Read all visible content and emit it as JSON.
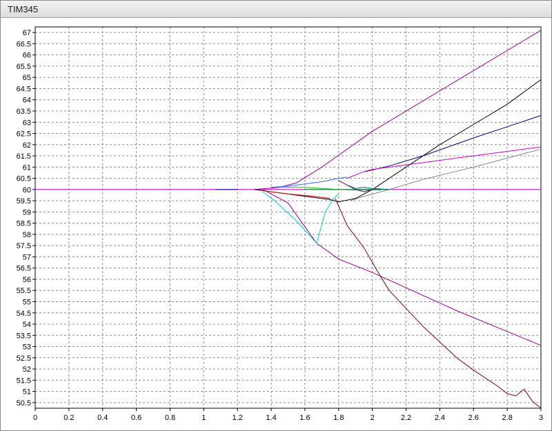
{
  "window": {
    "title": "TIM345"
  },
  "chart_data": {
    "type": "line",
    "title": "TIM345",
    "xlabel": "",
    "ylabel": "",
    "xlim": [
      0,
      3
    ],
    "ylim": [
      50.25,
      67.25
    ],
    "grid": true,
    "x_ticks": [
      0,
      0.2,
      0.4,
      0.6,
      0.8,
      1,
      1.2,
      1.4,
      1.6,
      1.8,
      2,
      2.2,
      2.4,
      2.6,
      2.8,
      3
    ],
    "y_ticks": [
      50.5,
      51,
      51.5,
      52,
      52.5,
      53,
      53.5,
      54,
      54.5,
      55,
      55.5,
      56,
      56.5,
      57,
      57.5,
      58,
      58.5,
      59,
      59.5,
      60,
      60.5,
      61,
      61.5,
      62,
      62.5,
      63,
      63.5,
      64,
      64.5,
      65,
      65.5,
      66,
      66.5,
      67
    ],
    "series": [
      {
        "color": "#cc00cc",
        "x": [
          0,
          3
        ],
        "y": [
          60,
          60
        ]
      },
      {
        "color": "#0000cc",
        "x": [
          1.07,
          1.2
        ],
        "y": [
          60.0,
          60.0
        ]
      },
      {
        "color": "#990099",
        "x": [
          1.3,
          1.45,
          1.55,
          1.7,
          2.0,
          2.5,
          3.0
        ],
        "y": [
          60.0,
          60.1,
          60.3,
          61.0,
          62.6,
          64.85,
          67.1
        ]
      },
      {
        "color": "#990099",
        "x": [
          1.35,
          1.5,
          1.67,
          1.8,
          2.0,
          2.5,
          3.0
        ],
        "y": [
          60.0,
          59.4,
          57.6,
          56.9,
          56.3,
          54.6,
          53.05
        ]
      },
      {
        "color": "#00cccc",
        "x": [
          1.35,
          1.42,
          1.55,
          1.67,
          1.72,
          1.77,
          1.8
        ],
        "y": [
          59.9,
          59.5,
          58.6,
          57.6,
          59.0,
          59.6,
          59.8
        ]
      },
      {
        "color": "#000000",
        "x": [
          1.3,
          1.45,
          1.6,
          1.75,
          1.8,
          1.9,
          2.0,
          2.2,
          2.4,
          2.6,
          2.8,
          3.0
        ],
        "y": [
          60.0,
          59.85,
          59.7,
          59.55,
          59.45,
          59.6,
          60.0,
          61.0,
          62.0,
          62.9,
          63.8,
          64.9
        ]
      },
      {
        "color": "#000080",
        "x": [
          1.96,
          2.1,
          2.3,
          2.6,
          2.8,
          3.0
        ],
        "y": [
          60.8,
          61.05,
          61.5,
          62.3,
          62.8,
          63.3
        ]
      },
      {
        "color": "#800000",
        "x": [
          1.78,
          1.85,
          1.95,
          2.05,
          2.1,
          2.2,
          2.3,
          2.4,
          2.5,
          2.6,
          2.7,
          2.75,
          2.8,
          2.85,
          2.9,
          2.95,
          3.0
        ],
        "y": [
          59.6,
          58.4,
          57.4,
          56.1,
          55.5,
          54.7,
          53.9,
          53.2,
          52.5,
          51.95,
          51.45,
          51.2,
          50.9,
          50.8,
          51.1,
          50.55,
          50.25
        ]
      },
      {
        "color": "#cc00cc",
        "x": [
          1.85,
          1.95,
          2.0,
          2.2,
          2.5,
          2.8,
          3.0
        ],
        "y": [
          60.5,
          60.8,
          60.9,
          61.1,
          61.4,
          61.7,
          61.9
        ]
      },
      {
        "color": "#808080",
        "x": [
          1.87,
          1.95,
          2.1,
          2.3,
          2.6,
          3.0
        ],
        "y": [
          59.5,
          59.7,
          60.0,
          60.45,
          61.0,
          61.8
        ]
      },
      {
        "color": "#3366ff",
        "x": [
          1.4,
          1.5,
          1.6,
          1.7,
          1.8,
          1.85
        ],
        "y": [
          60.1,
          60.15,
          60.25,
          60.35,
          60.5,
          60.55
        ]
      },
      {
        "color": "#00cc00",
        "x": [
          1.45,
          1.6,
          1.7,
          1.8,
          1.9,
          2.0,
          2.05
        ],
        "y": [
          60.1,
          60.1,
          60.05,
          60.0,
          59.98,
          59.98,
          59.98
        ]
      },
      {
        "color": "#009933",
        "x": [
          1.6,
          1.8,
          2.0,
          2.1
        ],
        "y": [
          60.0,
          60.0,
          60.0,
          60.0
        ]
      },
      {
        "color": "#cc0000",
        "x": [
          1.35,
          1.5,
          1.65,
          1.75
        ],
        "y": [
          59.95,
          59.8,
          59.7,
          59.6
        ]
      },
      {
        "color": "#660066",
        "x": [
          1.8,
          1.85,
          1.9,
          1.95,
          2.0
        ],
        "y": [
          60.4,
          60.2,
          60.0,
          59.9,
          60.0
        ]
      },
      {
        "color": "#006666",
        "x": [
          1.85,
          1.9,
          1.95,
          2.0,
          2.1
        ],
        "y": [
          60.2,
          60.05,
          60.1,
          60.05,
          60.0
        ]
      }
    ]
  }
}
